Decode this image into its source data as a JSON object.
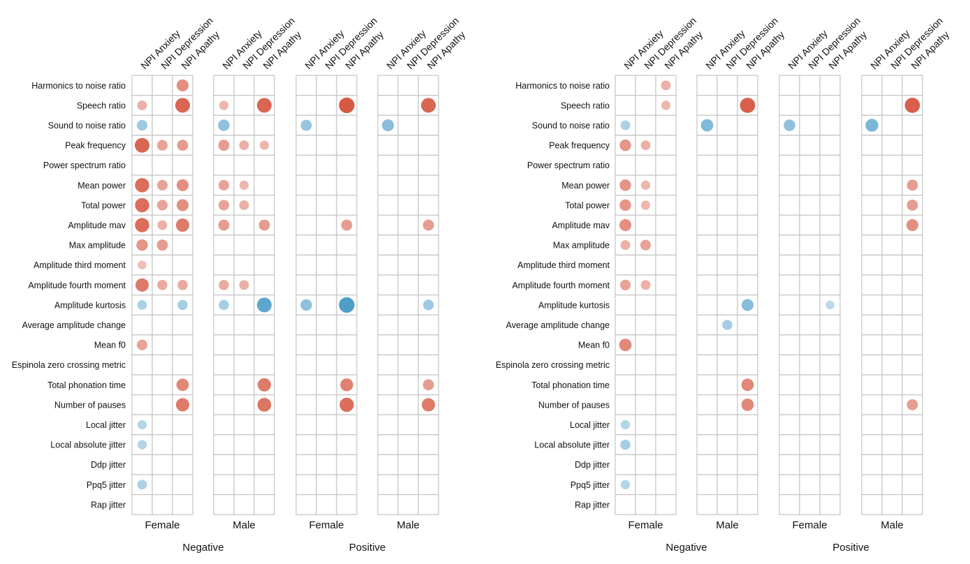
{
  "chart_data": [
    {
      "type": "heatmap",
      "title": "",
      "rows": [
        "Harmonics to noise ratio",
        "Speech ratio",
        "Sound to noise ratio",
        "Peak frequency",
        "Power spectrum ratio",
        "Mean power",
        "Total power",
        "Amplitude mav",
        "Max amplitude",
        "Amplitude third moment",
        "Amplitude fourth moment",
        "Amplitude kurtosis",
        "Average amplitude change",
        "Mean f0",
        "Espinola zero crossing metric",
        "Total phonation time",
        "Number of pauses",
        "Local jitter",
        "Local absolute jitter",
        "Ddp jitter",
        "Ppq5 jitter",
        "Rap jitter"
      ],
      "columns": [
        "NPI Anxiety",
        "NPI Depression",
        "NPI Apathy"
      ],
      "groups": [
        {
          "label": "Female",
          "section": "Negative"
        },
        {
          "label": "Male",
          "section": "Negative"
        },
        {
          "label": "Female",
          "section": "Positive"
        },
        {
          "label": "Male",
          "section": "Positive"
        }
      ],
      "sections": [
        "Negative",
        "Positive"
      ],
      "legend": "none",
      "value_range": [
        -1,
        1
      ],
      "points": [
        [
          0,
          0,
          2,
          0.55
        ],
        [
          0,
          1,
          0,
          0.3
        ],
        [
          0,
          1,
          2,
          0.85
        ],
        [
          0,
          2,
          0,
          -0.4
        ],
        [
          0,
          3,
          0,
          0.85
        ],
        [
          0,
          3,
          1,
          0.4
        ],
        [
          0,
          3,
          2,
          0.45
        ],
        [
          0,
          5,
          0,
          0.8
        ],
        [
          0,
          5,
          1,
          0.4
        ],
        [
          0,
          5,
          2,
          0.55
        ],
        [
          0,
          6,
          0,
          0.8
        ],
        [
          0,
          6,
          1,
          0.4
        ],
        [
          0,
          6,
          2,
          0.55
        ],
        [
          0,
          7,
          0,
          0.8
        ],
        [
          0,
          7,
          1,
          0.3
        ],
        [
          0,
          7,
          2,
          0.7
        ],
        [
          0,
          8,
          0,
          0.5
        ],
        [
          0,
          8,
          1,
          0.45
        ],
        [
          0,
          9,
          0,
          0.2
        ],
        [
          0,
          10,
          0,
          0.7
        ],
        [
          0,
          10,
          1,
          0.35
        ],
        [
          0,
          10,
          2,
          0.35
        ],
        [
          0,
          11,
          0,
          -0.3
        ],
        [
          0,
          11,
          2,
          -0.35
        ],
        [
          0,
          13,
          0,
          0.4
        ],
        [
          0,
          15,
          2,
          0.6
        ],
        [
          0,
          16,
          2,
          0.7
        ],
        [
          0,
          17,
          0,
          -0.25
        ],
        [
          0,
          18,
          0,
          -0.25
        ],
        [
          0,
          20,
          0,
          -0.3
        ],
        [
          1,
          1,
          0,
          0.25
        ],
        [
          1,
          1,
          2,
          0.85
        ],
        [
          1,
          2,
          0,
          -0.5
        ],
        [
          1,
          3,
          0,
          0.45
        ],
        [
          1,
          3,
          1,
          0.3
        ],
        [
          1,
          3,
          2,
          0.25
        ],
        [
          1,
          5,
          0,
          0.4
        ],
        [
          1,
          5,
          1,
          0.25
        ],
        [
          1,
          6,
          0,
          0.4
        ],
        [
          1,
          6,
          1,
          0.3
        ],
        [
          1,
          7,
          0,
          0.45
        ],
        [
          1,
          7,
          2,
          0.45
        ],
        [
          1,
          10,
          0,
          0.35
        ],
        [
          1,
          10,
          1,
          0.3
        ],
        [
          1,
          11,
          0,
          -0.35
        ],
        [
          1,
          11,
          2,
          -0.85
        ],
        [
          1,
          15,
          2,
          0.7
        ],
        [
          1,
          16,
          2,
          0.75
        ],
        [
          2,
          1,
          2,
          0.95
        ],
        [
          2,
          2,
          0,
          -0.45
        ],
        [
          2,
          7,
          2,
          0.45
        ],
        [
          2,
          11,
          0,
          -0.5
        ],
        [
          2,
          11,
          2,
          -0.95
        ],
        [
          2,
          15,
          2,
          0.65
        ],
        [
          2,
          16,
          2,
          0.8
        ],
        [
          3,
          1,
          2,
          0.85
        ],
        [
          3,
          2,
          0,
          -0.55
        ],
        [
          3,
          7,
          2,
          0.45
        ],
        [
          3,
          11,
          2,
          -0.4
        ],
        [
          3,
          15,
          2,
          0.45
        ],
        [
          3,
          16,
          2,
          0.7
        ]
      ]
    },
    {
      "type": "heatmap",
      "title": "",
      "rows": [
        "Harmonics to noise ratio",
        "Speech ratio",
        "Sound to noise ratio",
        "Peak frequency",
        "Power spectrum ratio",
        "Mean power",
        "Total power",
        "Amplitude mav",
        "Max amplitude",
        "Amplitude third moment",
        "Amplitude fourth moment",
        "Amplitude kurtosis",
        "Average amplitude change",
        "Mean f0",
        "Espinola zero crossing metric",
        "Total phonation time",
        "Number of pauses",
        "Local jitter",
        "Local absolute jitter",
        "Ddp jitter",
        "Ppq5 jitter",
        "Rap jitter"
      ],
      "columns": [
        "NPI Anxiety",
        "NPI Depression",
        "NPI Apathy"
      ],
      "groups": [
        {
          "label": "Female",
          "section": "Negative"
        },
        {
          "label": "Male",
          "section": "Negative"
        },
        {
          "label": "Female",
          "section": "Positive"
        },
        {
          "label": "Male",
          "section": "Positive"
        }
      ],
      "sections": [
        "Negative",
        "Positive"
      ],
      "legend": "none",
      "value_range": [
        -1,
        1
      ],
      "points": [
        [
          0,
          0,
          2,
          0.3
        ],
        [
          0,
          1,
          2,
          0.25
        ],
        [
          0,
          2,
          0,
          -0.3
        ],
        [
          0,
          3,
          0,
          0.5
        ],
        [
          0,
          3,
          1,
          0.3
        ],
        [
          0,
          5,
          0,
          0.5
        ],
        [
          0,
          5,
          1,
          0.25
        ],
        [
          0,
          6,
          0,
          0.5
        ],
        [
          0,
          6,
          1,
          0.25
        ],
        [
          0,
          7,
          0,
          0.55
        ],
        [
          0,
          8,
          0,
          0.3
        ],
        [
          0,
          8,
          1,
          0.4
        ],
        [
          0,
          10,
          0,
          0.4
        ],
        [
          0,
          10,
          1,
          0.3
        ],
        [
          0,
          13,
          0,
          0.6
        ],
        [
          0,
          17,
          0,
          -0.25
        ],
        [
          0,
          18,
          0,
          -0.35
        ],
        [
          0,
          20,
          0,
          -0.25
        ],
        [
          1,
          1,
          2,
          0.9
        ],
        [
          1,
          2,
          0,
          -0.6
        ],
        [
          1,
          11,
          2,
          -0.55
        ],
        [
          1,
          12,
          1,
          -0.35
        ],
        [
          1,
          15,
          2,
          0.6
        ],
        [
          1,
          16,
          2,
          0.6
        ],
        [
          2,
          2,
          0,
          -0.5
        ],
        [
          2,
          11,
          2,
          -0.2
        ],
        [
          3,
          1,
          2,
          0.9
        ],
        [
          3,
          2,
          0,
          -0.65
        ],
        [
          3,
          5,
          2,
          0.45
        ],
        [
          3,
          6,
          2,
          0.45
        ],
        [
          3,
          7,
          2,
          0.55
        ],
        [
          3,
          16,
          2,
          0.45
        ]
      ]
    }
  ]
}
